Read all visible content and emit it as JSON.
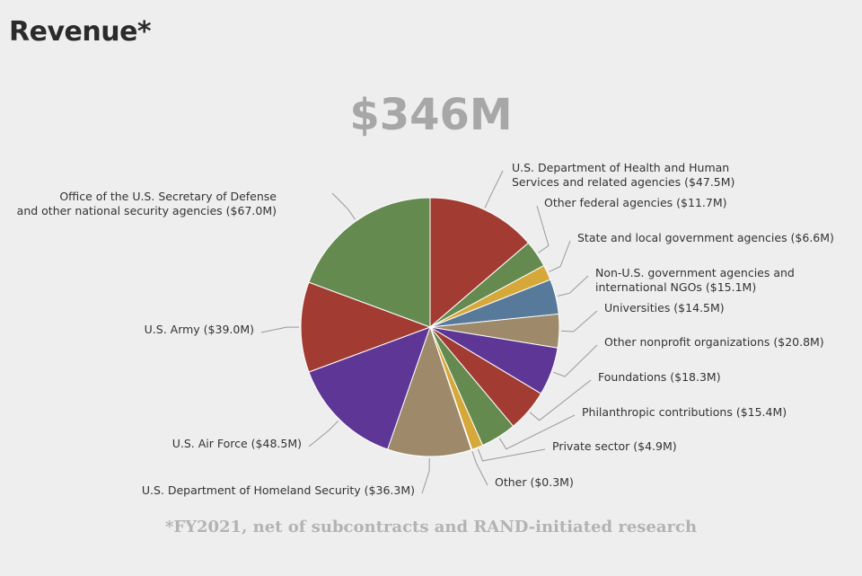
{
  "header": {
    "title": "Revenue*"
  },
  "total": "$346M",
  "footnote": "*FY2021, net of subcontracts and RAND-initiated research",
  "chart_data": {
    "type": "pie",
    "title": "",
    "units": "$M",
    "slices": [
      {
        "label": "U.S. Department of Health and Human Services and related agencies",
        "lines": [
          "U.S. Department of Health and Human",
          "Services and related agencies ($47.5M)"
        ],
        "value": 47.5,
        "color": "#a23c33"
      },
      {
        "label": "Other federal agencies",
        "lines": [
          "Other federal agencies ($11.7M)"
        ],
        "value": 11.7,
        "color": "#648a50"
      },
      {
        "label": "State and local government agencies",
        "lines": [
          "State and local government agencies ($6.6M)"
        ],
        "value": 6.6,
        "color": "#d6a83a"
      },
      {
        "label": "Non-U.S. government agencies and international NGOs",
        "lines": [
          "Non-U.S. government agencies and",
          "international NGOs ($15.1M)"
        ],
        "value": 15.1,
        "color": "#587a9a"
      },
      {
        "label": "Universities",
        "lines": [
          "Universities ($14.5M)"
        ],
        "value": 14.5,
        "color": "#9e8a6a"
      },
      {
        "label": "Other nonprofit organizations",
        "lines": [
          "Other nonprofit organizations ($20.8M)"
        ],
        "value": 20.8,
        "color": "#5e3696"
      },
      {
        "label": "Foundations",
        "lines": [
          "Foundations ($18.3M)"
        ],
        "value": 18.3,
        "color": "#a23c33"
      },
      {
        "label": "Philanthropic contributions",
        "lines": [
          "Philanthropic contributions ($15.4M)"
        ],
        "value": 15.4,
        "color": "#648a50"
      },
      {
        "label": "Private sector",
        "lines": [
          "Private sector ($4.9M)"
        ],
        "value": 4.9,
        "color": "#d6a83a"
      },
      {
        "label": "Other",
        "lines": [
          "Other ($0.3M)"
        ],
        "value": 0.3,
        "color": "#587a9a"
      },
      {
        "label": "U.S. Department of Homeland Security",
        "lines": [
          "U.S. Department of Homeland Security ($36.3M)"
        ],
        "value": 36.3,
        "color": "#9e8a6a"
      },
      {
        "label": "U.S. Air Force",
        "lines": [
          "U.S. Air Force ($48.5M)"
        ],
        "value": 48.5,
        "color": "#5e3696"
      },
      {
        "label": "U.S. Army",
        "lines": [
          "U.S. Army ($39.0M)"
        ],
        "value": 39.0,
        "color": "#a23c33"
      },
      {
        "label": "Office of the U.S. Secretary of Defense and other national security agencies",
        "lines": [
          "Office of the U.S. Secretary of Defense",
          "and other national security agencies ($67.0M)"
        ],
        "value": 67.0,
        "color": "#648a50"
      }
    ]
  }
}
